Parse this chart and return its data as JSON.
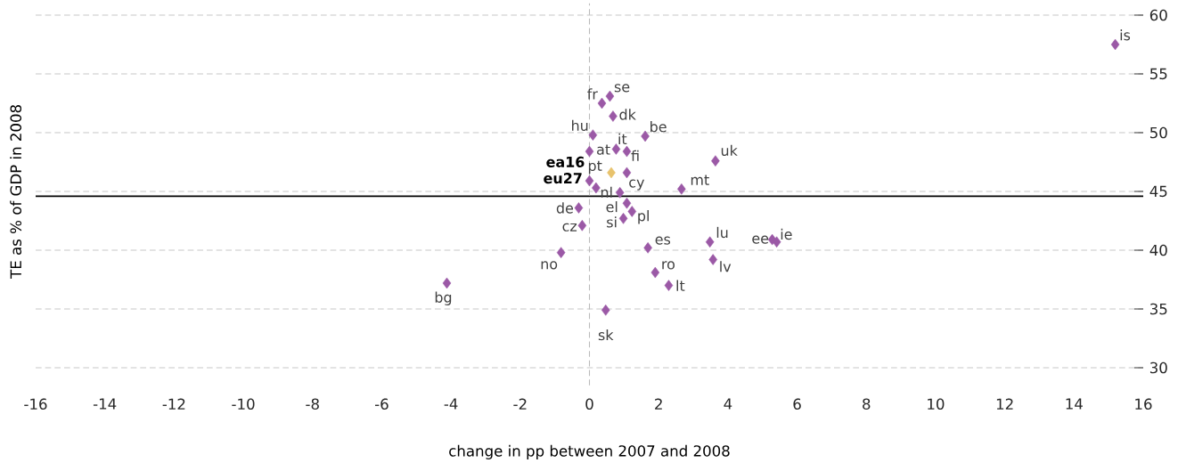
{
  "chart_data": {
    "type": "scatter",
    "xlabel": "change in pp between 2007 and 2008",
    "ylabel": "TE as % of GDP in 2008",
    "x": [
      15.19,
      0.59,
      0.36,
      0.68,
      0.1,
      1.61,
      0.77,
      0.0,
      1.08,
      3.64,
      0.63,
      1.08,
      0.0,
      0.19,
      0.88,
      2.66,
      -0.31,
      1.08,
      1.23,
      0.98,
      -0.21,
      -0.82,
      1.69,
      3.48,
      5.28,
      5.41,
      3.57,
      1.9,
      2.29,
      -4.12,
      0.47
    ],
    "values": [
      57.5,
      53.1,
      52.5,
      51.4,
      49.8,
      49.7,
      48.6,
      48.4,
      48.4,
      47.6,
      46.6,
      46.6,
      45.9,
      45.3,
      44.9,
      45.2,
      43.6,
      44.0,
      43.3,
      42.7,
      42.1,
      39.8,
      40.2,
      40.7,
      40.9,
      40.7,
      39.2,
      38.1,
      37.0,
      37.2,
      34.9
    ],
    "colors": [
      "#9b59a6",
      "#9b59a6",
      "#9b59a6",
      "#9b59a6",
      "#9b59a6",
      "#9b59a6",
      "#9b59a6",
      "#9b59a6",
      "#9b59a6",
      "#9b59a6",
      "#e8c36d",
      "#9b59a6",
      "#9b59a6",
      "#9b59a6",
      "#9b59a6",
      "#9b59a6",
      "#9b59a6",
      "#9b59a6",
      "#9b59a6",
      "#9b59a6",
      "#9b59a6",
      "#9b59a6",
      "#9b59a6",
      "#9b59a6",
      "#9b59a6",
      "#9b59a6",
      "#9b59a6",
      "#9b59a6",
      "#9b59a6",
      "#9b59a6",
      "#9b59a6"
    ],
    "annotations": [
      {
        "text": "is",
        "x": 15.19,
        "y": 57.5
      },
      {
        "text": "se",
        "x": 0.59,
        "y": 53.1
      },
      {
        "text": "fr",
        "x": 0.36,
        "y": 52.5
      },
      {
        "text": "dk",
        "x": 0.68,
        "y": 51.4
      },
      {
        "text": "hu",
        "x": 0.1,
        "y": 49.8
      },
      {
        "text": "be",
        "x": 1.61,
        "y": 49.7
      },
      {
        "text": "it",
        "x": 0.77,
        "y": 48.6
      },
      {
        "text": "at",
        "x": 0.0,
        "y": 48.4
      },
      {
        "text": "fi",
        "x": 1.08,
        "y": 48.4
      },
      {
        "text": "uk",
        "x": 3.64,
        "y": 47.6
      },
      {
        "text": "ea16",
        "x": 0.63,
        "y": 46.6
      },
      {
        "text": "pt",
        "x": 1.08,
        "y": 46.6
      },
      {
        "text": "eu27",
        "x": 0.0,
        "y": 45.9
      },
      {
        "text": "nl",
        "x": 0.19,
        "y": 45.3
      },
      {
        "text": "cy",
        "x": 0.88,
        "y": 44.9
      },
      {
        "text": "mt",
        "x": 2.66,
        "y": 45.2
      },
      {
        "text": "de",
        "x": -0.31,
        "y": 43.6
      },
      {
        "text": "el",
        "x": 1.08,
        "y": 44.0
      },
      {
        "text": "pl",
        "x": 1.23,
        "y": 43.3
      },
      {
        "text": "si",
        "x": 0.98,
        "y": 42.7
      },
      {
        "text": "cz",
        "x": -0.21,
        "y": 42.1
      },
      {
        "text": "no",
        "x": -0.82,
        "y": 39.8
      },
      {
        "text": "es",
        "x": 1.69,
        "y": 40.2
      },
      {
        "text": "lu",
        "x": 3.48,
        "y": 40.7
      },
      {
        "text": "ee",
        "x": 5.28,
        "y": 40.9
      },
      {
        "text": "ie",
        "x": 5.41,
        "y": 40.7
      },
      {
        "text": "lv",
        "x": 3.57,
        "y": 39.2
      },
      {
        "text": "ro",
        "x": 1.9,
        "y": 38.1
      },
      {
        "text": "lt",
        "x": 2.29,
        "y": 37.0
      },
      {
        "text": "bg",
        "x": -4.12,
        "y": 37.2
      },
      {
        "text": "sk",
        "x": 0.47,
        "y": 34.9
      }
    ],
    "marker": "diamond",
    "grid": "y",
    "ref_lines": [
      {
        "axis": "y",
        "value": 44.6,
        "color": "#000000",
        "line_style": "solid"
      },
      {
        "axis": "x",
        "value": 0,
        "color": "#bbbbbb",
        "line_style": "dashed"
      }
    ],
    "xlim": [
      -16,
      16
    ],
    "ylim": [
      28.5,
      61
    ],
    "xticks": [
      -16,
      -14,
      -12,
      -10,
      -8,
      -6,
      -4,
      -2,
      0,
      2,
      4,
      6,
      8,
      10,
      12,
      14,
      16
    ],
    "yticks": [
      30,
      35,
      40,
      45,
      50,
      55,
      60
    ]
  }
}
